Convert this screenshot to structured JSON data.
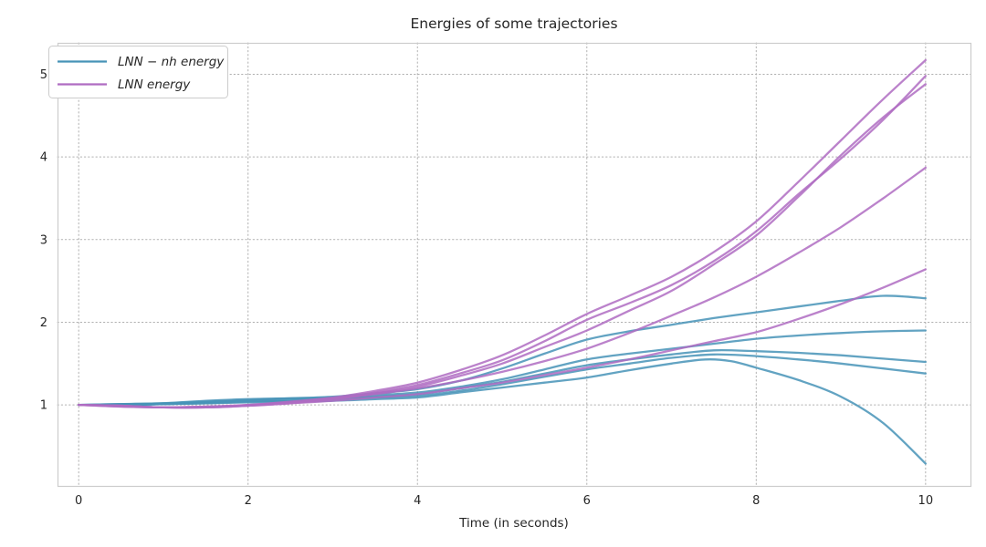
{
  "chart_data": {
    "type": "line",
    "title": "Energies of some trajectories",
    "xlabel": "Time (in seconds)",
    "ylabel": "",
    "xlim": [
      -0.25,
      10.53
    ],
    "ylim": [
      0.02,
      5.38
    ],
    "xticks": [
      "0",
      "2",
      "4",
      "6",
      "8",
      "10"
    ],
    "xtick_values": [
      0,
      2,
      4,
      6,
      8,
      10
    ],
    "yticks": [
      "1",
      "2",
      "3",
      "4",
      "5"
    ],
    "ytick_values": [
      1,
      2,
      3,
      4,
      5
    ],
    "grid": "dotted",
    "background_color": "#ffffff",
    "text_color": "#262626",
    "grid_color": "#b0b0b0",
    "spine_color": "#cccccc",
    "legend": {
      "position": "upper left",
      "entries": [
        {
          "label": "LNN − nh energy",
          "color": "#4793b7"
        },
        {
          "label": "LNN energy",
          "color": "#af6cc2"
        }
      ]
    },
    "series": [
      {
        "id": "lnn-nh-traj-1",
        "group": "LNN − nh energy",
        "color": "#4793b7",
        "points": [
          [
            0,
            1.0
          ],
          [
            0.5,
            1.01
          ],
          [
            1,
            1.02
          ],
          [
            1.5,
            1.04
          ],
          [
            2,
            1.06
          ],
          [
            2.5,
            1.08
          ],
          [
            3,
            1.1
          ],
          [
            3.5,
            1.14
          ],
          [
            4,
            1.19
          ],
          [
            4.5,
            1.29
          ],
          [
            5,
            1.44
          ],
          [
            5.5,
            1.62
          ],
          [
            6,
            1.79
          ],
          [
            6.5,
            1.89
          ],
          [
            7,
            1.97
          ],
          [
            7.5,
            2.05
          ],
          [
            8,
            2.12
          ],
          [
            8.5,
            2.19
          ],
          [
            9,
            2.26
          ],
          [
            9.5,
            2.32
          ],
          [
            10,
            2.29
          ]
        ]
      },
      {
        "id": "lnn-nh-traj-2",
        "group": "LNN − nh energy",
        "color": "#4793b7",
        "points": [
          [
            0,
            1.0
          ],
          [
            0.5,
            1.01
          ],
          [
            1,
            1.02
          ],
          [
            1.5,
            1.05
          ],
          [
            2,
            1.07
          ],
          [
            2.5,
            1.08
          ],
          [
            3,
            1.09
          ],
          [
            3.5,
            1.12
          ],
          [
            4,
            1.15
          ],
          [
            4.5,
            1.22
          ],
          [
            5,
            1.31
          ],
          [
            5.5,
            1.43
          ],
          [
            6,
            1.55
          ],
          [
            6.5,
            1.62
          ],
          [
            7,
            1.68
          ],
          [
            7.5,
            1.74
          ],
          [
            8,
            1.8
          ],
          [
            8.5,
            1.84
          ],
          [
            9,
            1.87
          ],
          [
            9.5,
            1.89
          ],
          [
            10,
            1.9
          ]
        ]
      },
      {
        "id": "lnn-nh-traj-3",
        "group": "LNN − nh energy",
        "color": "#4793b7",
        "points": [
          [
            0,
            1.0
          ],
          [
            0.5,
            1.0
          ],
          [
            1,
            1.01
          ],
          [
            1.5,
            1.03
          ],
          [
            2,
            1.05
          ],
          [
            2.5,
            1.06
          ],
          [
            3,
            1.08
          ],
          [
            3.5,
            1.1
          ],
          [
            4,
            1.13
          ],
          [
            4.5,
            1.2
          ],
          [
            5,
            1.28
          ],
          [
            5.5,
            1.38
          ],
          [
            6,
            1.48
          ],
          [
            6.5,
            1.55
          ],
          [
            7,
            1.61
          ],
          [
            7.5,
            1.66
          ],
          [
            8,
            1.65
          ],
          [
            8.5,
            1.63
          ],
          [
            9,
            1.6
          ],
          [
            9.5,
            1.56
          ],
          [
            10,
            1.52
          ]
        ]
      },
      {
        "id": "lnn-nh-traj-4",
        "group": "LNN − nh energy",
        "color": "#4793b7",
        "points": [
          [
            0,
            1.0
          ],
          [
            0.5,
            1.0
          ],
          [
            1,
            1.01
          ],
          [
            1.5,
            1.02
          ],
          [
            2,
            1.04
          ],
          [
            2.5,
            1.05
          ],
          [
            3,
            1.07
          ],
          [
            3.5,
            1.09
          ],
          [
            4,
            1.11
          ],
          [
            4.5,
            1.17
          ],
          [
            5,
            1.25
          ],
          [
            5.5,
            1.34
          ],
          [
            6,
            1.43
          ],
          [
            6.5,
            1.5
          ],
          [
            7,
            1.57
          ],
          [
            7.5,
            1.61
          ],
          [
            8,
            1.59
          ],
          [
            8.5,
            1.55
          ],
          [
            9,
            1.5
          ],
          [
            9.5,
            1.44
          ],
          [
            10,
            1.38
          ]
        ]
      },
      {
        "id": "lnn-nh-traj-5",
        "group": "LNN − nh energy",
        "color": "#4793b7",
        "points": [
          [
            0,
            1.0
          ],
          [
            0.5,
            1.0
          ],
          [
            1,
            1.01
          ],
          [
            1.5,
            1.02
          ],
          [
            2,
            1.03
          ],
          [
            2.5,
            1.04
          ],
          [
            3,
            1.05
          ],
          [
            3.5,
            1.07
          ],
          [
            4,
            1.09
          ],
          [
            4.5,
            1.15
          ],
          [
            5,
            1.21
          ],
          [
            5.5,
            1.27
          ],
          [
            6,
            1.33
          ],
          [
            6.5,
            1.42
          ],
          [
            7,
            1.5
          ],
          [
            7.4,
            1.55
          ],
          [
            7.7,
            1.53
          ],
          [
            8,
            1.45
          ],
          [
            8.5,
            1.3
          ],
          [
            9,
            1.1
          ],
          [
            9.5,
            0.78
          ],
          [
            10,
            0.29
          ]
        ]
      },
      {
        "id": "lnn-traj-1",
        "group": "LNN energy",
        "color": "#af6cc2",
        "points": [
          [
            0,
            1.0
          ],
          [
            0.5,
            0.99
          ],
          [
            1,
            0.97
          ],
          [
            1.5,
            0.97
          ],
          [
            2,
            1.0
          ],
          [
            2.5,
            1.04
          ],
          [
            3,
            1.09
          ],
          [
            3.5,
            1.17
          ],
          [
            4,
            1.27
          ],
          [
            4.5,
            1.42
          ],
          [
            5,
            1.6
          ],
          [
            5.5,
            1.84
          ],
          [
            6,
            2.1
          ],
          [
            6.5,
            2.32
          ],
          [
            7,
            2.55
          ],
          [
            7.5,
            2.85
          ],
          [
            8,
            3.22
          ],
          [
            8.5,
            3.7
          ],
          [
            9,
            4.2
          ],
          [
            9.5,
            4.7
          ],
          [
            10,
            5.17
          ]
        ]
      },
      {
        "id": "lnn-traj-2",
        "group": "LNN energy",
        "color": "#af6cc2",
        "points": [
          [
            0,
            1.0
          ],
          [
            0.5,
            0.99
          ],
          [
            1,
            0.97
          ],
          [
            1.5,
            0.97
          ],
          [
            2,
            0.99
          ],
          [
            2.5,
            1.03
          ],
          [
            3,
            1.08
          ],
          [
            3.5,
            1.15
          ],
          [
            4,
            1.24
          ],
          [
            4.5,
            1.38
          ],
          [
            5,
            1.54
          ],
          [
            5.5,
            1.77
          ],
          [
            6,
            2.03
          ],
          [
            6.5,
            2.23
          ],
          [
            7,
            2.45
          ],
          [
            7.5,
            2.74
          ],
          [
            8,
            3.1
          ],
          [
            8.5,
            3.55
          ],
          [
            9,
            3.98
          ],
          [
            9.5,
            4.45
          ],
          [
            10,
            4.98
          ]
        ]
      },
      {
        "id": "lnn-traj-3",
        "group": "LNN energy",
        "color": "#af6cc2",
        "points": [
          [
            0,
            1.0
          ],
          [
            0.5,
            0.99
          ],
          [
            1,
            0.97
          ],
          [
            1.5,
            0.97
          ],
          [
            2,
            0.99
          ],
          [
            2.5,
            1.02
          ],
          [
            3,
            1.07
          ],
          [
            3.5,
            1.14
          ],
          [
            4,
            1.22
          ],
          [
            4.5,
            1.35
          ],
          [
            5,
            1.5
          ],
          [
            5.5,
            1.7
          ],
          [
            6,
            1.9
          ],
          [
            6.5,
            2.14
          ],
          [
            7,
            2.38
          ],
          [
            7.5,
            2.7
          ],
          [
            8,
            3.05
          ],
          [
            8.5,
            3.52
          ],
          [
            9,
            4.02
          ],
          [
            9.5,
            4.48
          ],
          [
            10,
            4.88
          ]
        ]
      },
      {
        "id": "lnn-traj-4",
        "group": "LNN energy",
        "color": "#af6cc2",
        "points": [
          [
            0,
            1.0
          ],
          [
            0.5,
            0.98
          ],
          [
            1,
            0.97
          ],
          [
            1.5,
            0.98
          ],
          [
            2,
            1.0
          ],
          [
            2.5,
            1.03
          ],
          [
            3,
            1.07
          ],
          [
            3.5,
            1.13
          ],
          [
            4,
            1.2
          ],
          [
            4.5,
            1.29
          ],
          [
            5,
            1.4
          ],
          [
            5.5,
            1.53
          ],
          [
            6,
            1.68
          ],
          [
            6.5,
            1.87
          ],
          [
            7,
            2.08
          ],
          [
            7.5,
            2.3
          ],
          [
            8,
            2.55
          ],
          [
            8.5,
            2.84
          ],
          [
            9,
            3.15
          ],
          [
            9.5,
            3.5
          ],
          [
            10,
            3.87
          ]
        ]
      },
      {
        "id": "lnn-traj-5",
        "group": "LNN energy",
        "color": "#af6cc2",
        "points": [
          [
            0,
            1.0
          ],
          [
            0.5,
            0.98
          ],
          [
            1,
            0.97
          ],
          [
            1.5,
            0.98
          ],
          [
            2,
            0.99
          ],
          [
            2.5,
            1.02
          ],
          [
            3,
            1.05
          ],
          [
            3.5,
            1.09
          ],
          [
            4,
            1.13
          ],
          [
            4.5,
            1.2
          ],
          [
            5,
            1.27
          ],
          [
            5.5,
            1.36
          ],
          [
            6,
            1.45
          ],
          [
            6.5,
            1.55
          ],
          [
            7,
            1.66
          ],
          [
            7.5,
            1.77
          ],
          [
            8,
            1.88
          ],
          [
            8.5,
            2.04
          ],
          [
            9,
            2.22
          ],
          [
            9.5,
            2.42
          ],
          [
            10,
            2.64
          ]
        ]
      }
    ]
  }
}
